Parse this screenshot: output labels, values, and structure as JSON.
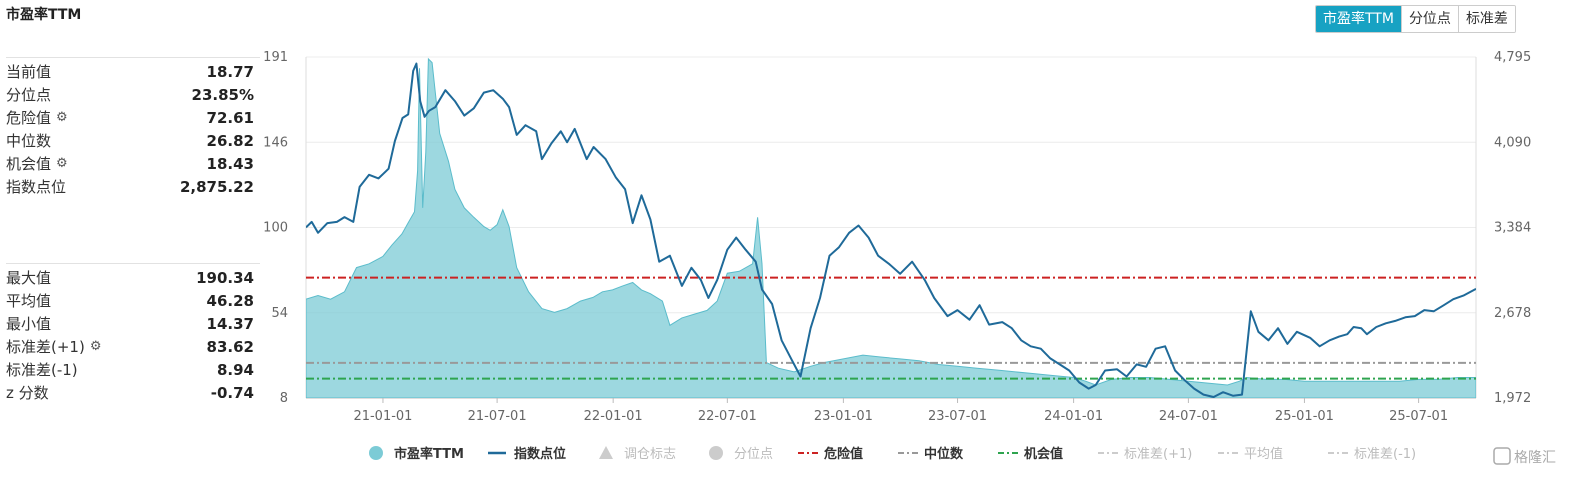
{
  "title": "市盈率TTM",
  "tabs": [
    {
      "label": "市盈率TTM",
      "active": true
    },
    {
      "label": "分位点",
      "active": false
    },
    {
      "label": "标准差",
      "active": false
    }
  ],
  "stats_top": [
    {
      "label": "当前值",
      "value": "18.77",
      "gear": false
    },
    {
      "label": "分位点",
      "value": "23.85%",
      "gear": false
    },
    {
      "label": "危险值",
      "value": "72.61",
      "gear": true
    },
    {
      "label": "中位数",
      "value": "26.82",
      "gear": false
    },
    {
      "label": "机会值",
      "value": "18.43",
      "gear": true
    },
    {
      "label": "指数点位",
      "value": "2,875.22",
      "gear": false
    }
  ],
  "stats_bottom": [
    {
      "label": "最大值",
      "value": "190.34",
      "gear": false
    },
    {
      "label": "平均值",
      "value": "46.28",
      "gear": false
    },
    {
      "label": "最小值",
      "value": "14.37",
      "gear": false
    },
    {
      "label": "标准差(+1)",
      "value": "83.62",
      "gear": true
    },
    {
      "label": "标准差(-1)",
      "value": "8.94",
      "gear": false
    },
    {
      "label": "z 分数",
      "value": "-0.74",
      "gear": false
    }
  ],
  "watermark": "格隆汇",
  "chart_data": {
    "type": "line",
    "x_ticks": [
      "21-01-01",
      "21-07-01",
      "22-01-01",
      "22-07-01",
      "23-01-01",
      "23-07-01",
      "24-01-01",
      "24-07-01",
      "25-01-01",
      "25-07-01"
    ],
    "x_range": [
      "2020-09-01",
      "2025-09-30"
    ],
    "y_left": {
      "ticks": [
        "191",
        "146",
        "100",
        "54",
        "8"
      ],
      "min": 8,
      "max": 191
    },
    "y_right": {
      "ticks": [
        "4,795",
        "4,090",
        "3,384",
        "2,678",
        "1,972"
      ],
      "min": 1972,
      "max": 4795
    },
    "series": [
      {
        "name": "市盈率TTM",
        "type": "area",
        "axis": "left",
        "color": "#7ccbd6",
        "points": [
          [
            "2020-09-01",
            61
          ],
          [
            "2020-09-20",
            63
          ],
          [
            "2020-10-10",
            61
          ],
          [
            "2020-11-01",
            65
          ],
          [
            "2020-11-20",
            78
          ],
          [
            "2020-12-10",
            80
          ],
          [
            "2021-01-01",
            84
          ],
          [
            "2021-01-15",
            90
          ],
          [
            "2021-01-31",
            96
          ],
          [
            "2021-02-10",
            102
          ],
          [
            "2021-02-20",
            108
          ],
          [
            "2021-02-25",
            130
          ],
          [
            "2021-02-28",
            185
          ],
          [
            "2021-03-05",
            110
          ],
          [
            "2021-03-10",
            140
          ],
          [
            "2021-03-14",
            190
          ],
          [
            "2021-03-20",
            188
          ],
          [
            "2021-04-01",
            150
          ],
          [
            "2021-04-15",
            135
          ],
          [
            "2021-04-25",
            120
          ],
          [
            "2021-05-10",
            110
          ],
          [
            "2021-05-25",
            105
          ],
          [
            "2021-06-10",
            100
          ],
          [
            "2021-06-20",
            98
          ],
          [
            "2021-07-01",
            101
          ],
          [
            "2021-07-10",
            109
          ],
          [
            "2021-07-20",
            100
          ],
          [
            "2021-08-01",
            78
          ],
          [
            "2021-08-20",
            65
          ],
          [
            "2021-09-10",
            56
          ],
          [
            "2021-09-30",
            54
          ],
          [
            "2021-10-20",
            56
          ],
          [
            "2021-11-10",
            60
          ],
          [
            "2021-11-30",
            62
          ],
          [
            "2021-12-15",
            65
          ],
          [
            "2021-12-31",
            66
          ],
          [
            "2022-01-15",
            68
          ],
          [
            "2022-02-01",
            70
          ],
          [
            "2022-02-15",
            66
          ],
          [
            "2022-03-01",
            64
          ],
          [
            "2022-03-20",
            60
          ],
          [
            "2022-04-01",
            47
          ],
          [
            "2022-04-20",
            51
          ],
          [
            "2022-05-10",
            53
          ],
          [
            "2022-05-30",
            55
          ],
          [
            "2022-06-15",
            60
          ],
          [
            "2022-07-01",
            75
          ],
          [
            "2022-07-20",
            76
          ],
          [
            "2022-08-10",
            80
          ],
          [
            "2022-08-18",
            105
          ],
          [
            "2022-08-25",
            80
          ],
          [
            "2022-09-01",
            27
          ],
          [
            "2022-09-20",
            24
          ],
          [
            "2022-10-15",
            22
          ],
          [
            "2022-11-10",
            25
          ],
          [
            "2022-12-01",
            27
          ],
          [
            "2023-01-01",
            29
          ],
          [
            "2023-02-01",
            31
          ],
          [
            "2023-03-01",
            30
          ],
          [
            "2023-04-01",
            29
          ],
          [
            "2023-05-01",
            28
          ],
          [
            "2023-06-01",
            26
          ],
          [
            "2023-07-01",
            25
          ],
          [
            "2023-08-01",
            24
          ],
          [
            "2023-09-01",
            23
          ],
          [
            "2023-10-01",
            22
          ],
          [
            "2023-11-01",
            21
          ],
          [
            "2023-12-01",
            20
          ],
          [
            "2024-01-01",
            19
          ],
          [
            "2024-01-20",
            17
          ],
          [
            "2024-02-05",
            15
          ],
          [
            "2024-03-01",
            18
          ],
          [
            "2024-04-01",
            19
          ],
          [
            "2024-05-01",
            19
          ],
          [
            "2024-06-01",
            18
          ],
          [
            "2024-07-01",
            17
          ],
          [
            "2024-08-01",
            16
          ],
          [
            "2024-09-01",
            15
          ],
          [
            "2024-09-20",
            17
          ],
          [
            "2024-10-01",
            19
          ],
          [
            "2024-11-01",
            18
          ],
          [
            "2024-12-01",
            18
          ],
          [
            "2025-01-01",
            17
          ],
          [
            "2025-02-01",
            17
          ],
          [
            "2025-03-01",
            17
          ],
          [
            "2025-04-01",
            17
          ],
          [
            "2025-05-01",
            17
          ],
          [
            "2025-06-01",
            17
          ],
          [
            "2025-07-01",
            18
          ],
          [
            "2025-08-01",
            18
          ],
          [
            "2025-09-01",
            19
          ],
          [
            "2025-09-30",
            19
          ]
        ]
      },
      {
        "name": "指数点位",
        "type": "line",
        "axis": "right",
        "color": "#1f6a99",
        "points": [
          [
            "2020-09-01",
            3384
          ],
          [
            "2020-09-10",
            3430
          ],
          [
            "2020-09-20",
            3340
          ],
          [
            "2020-10-05",
            3420
          ],
          [
            "2020-10-20",
            3430
          ],
          [
            "2020-11-01",
            3470
          ],
          [
            "2020-11-15",
            3430
          ],
          [
            "2020-11-25",
            3720
          ],
          [
            "2020-12-10",
            3820
          ],
          [
            "2020-12-25",
            3790
          ],
          [
            "2021-01-10",
            3870
          ],
          [
            "2021-01-20",
            4100
          ],
          [
            "2021-02-01",
            4290
          ],
          [
            "2021-02-10",
            4320
          ],
          [
            "2021-02-18",
            4680
          ],
          [
            "2021-02-23",
            4740
          ],
          [
            "2021-03-01",
            4430
          ],
          [
            "2021-03-08",
            4300
          ],
          [
            "2021-03-15",
            4350
          ],
          [
            "2021-03-25",
            4380
          ],
          [
            "2021-04-10",
            4520
          ],
          [
            "2021-04-25",
            4430
          ],
          [
            "2021-05-10",
            4310
          ],
          [
            "2021-05-25",
            4370
          ],
          [
            "2021-06-10",
            4500
          ],
          [
            "2021-06-25",
            4520
          ],
          [
            "2021-07-10",
            4450
          ],
          [
            "2021-07-20",
            4380
          ],
          [
            "2021-08-01",
            4150
          ],
          [
            "2021-08-15",
            4230
          ],
          [
            "2021-09-01",
            4180
          ],
          [
            "2021-09-10",
            3950
          ],
          [
            "2021-09-25",
            4080
          ],
          [
            "2021-10-10",
            4180
          ],
          [
            "2021-10-20",
            4090
          ],
          [
            "2021-11-01",
            4200
          ],
          [
            "2021-11-20",
            3950
          ],
          [
            "2021-12-01",
            4050
          ],
          [
            "2021-12-20",
            3950
          ],
          [
            "2022-01-05",
            3800
          ],
          [
            "2022-01-20",
            3700
          ],
          [
            "2022-02-01",
            3420
          ],
          [
            "2022-02-15",
            3650
          ],
          [
            "2022-03-01",
            3450
          ],
          [
            "2022-03-15",
            3100
          ],
          [
            "2022-04-01",
            3150
          ],
          [
            "2022-04-20",
            2900
          ],
          [
            "2022-05-05",
            3050
          ],
          [
            "2022-05-20",
            2950
          ],
          [
            "2022-06-01",
            2800
          ],
          [
            "2022-06-15",
            2950
          ],
          [
            "2022-07-01",
            3200
          ],
          [
            "2022-07-15",
            3300
          ],
          [
            "2022-07-30",
            3200
          ],
          [
            "2022-08-15",
            3100
          ],
          [
            "2022-08-25",
            2870
          ],
          [
            "2022-09-10",
            2750
          ],
          [
            "2022-09-25",
            2450
          ],
          [
            "2022-10-10",
            2300
          ],
          [
            "2022-10-25",
            2150
          ],
          [
            "2022-11-10",
            2550
          ],
          [
            "2022-11-25",
            2800
          ],
          [
            "2022-12-10",
            3150
          ],
          [
            "2022-12-25",
            3220
          ],
          [
            "2023-01-10",
            3340
          ],
          [
            "2023-01-25",
            3400
          ],
          [
            "2023-02-10",
            3300
          ],
          [
            "2023-02-25",
            3150
          ],
          [
            "2023-03-15",
            3080
          ],
          [
            "2023-04-01",
            3000
          ],
          [
            "2023-04-20",
            3100
          ],
          [
            "2023-05-10",
            2950
          ],
          [
            "2023-05-25",
            2800
          ],
          [
            "2023-06-15",
            2650
          ],
          [
            "2023-07-01",
            2700
          ],
          [
            "2023-07-20",
            2620
          ],
          [
            "2023-08-05",
            2740
          ],
          [
            "2023-08-20",
            2580
          ],
          [
            "2023-09-10",
            2600
          ],
          [
            "2023-09-25",
            2550
          ],
          [
            "2023-10-10",
            2450
          ],
          [
            "2023-10-25",
            2400
          ],
          [
            "2023-11-10",
            2380
          ],
          [
            "2023-11-25",
            2300
          ],
          [
            "2023-12-10",
            2250
          ],
          [
            "2023-12-25",
            2200
          ],
          [
            "2024-01-10",
            2100
          ],
          [
            "2024-01-25",
            2050
          ],
          [
            "2024-02-05",
            2080
          ],
          [
            "2024-02-20",
            2200
          ],
          [
            "2024-03-10",
            2210
          ],
          [
            "2024-03-25",
            2150
          ],
          [
            "2024-04-10",
            2250
          ],
          [
            "2024-04-25",
            2230
          ],
          [
            "2024-05-10",
            2380
          ],
          [
            "2024-05-25",
            2400
          ],
          [
            "2024-06-10",
            2200
          ],
          [
            "2024-06-25",
            2120
          ],
          [
            "2024-07-10",
            2050
          ],
          [
            "2024-07-25",
            2000
          ],
          [
            "2024-08-10",
            1980
          ],
          [
            "2024-08-25",
            2020
          ],
          [
            "2024-09-10",
            1990
          ],
          [
            "2024-09-24",
            2000
          ],
          [
            "2024-10-08",
            2690
          ],
          [
            "2024-10-20",
            2520
          ],
          [
            "2024-11-05",
            2450
          ],
          [
            "2024-11-20",
            2550
          ],
          [
            "2024-12-05",
            2420
          ],
          [
            "2024-12-20",
            2520
          ],
          [
            "2025-01-10",
            2470
          ],
          [
            "2025-01-25",
            2400
          ],
          [
            "2025-02-10",
            2450
          ],
          [
            "2025-02-25",
            2480
          ],
          [
            "2025-03-10",
            2500
          ],
          [
            "2025-03-20",
            2560
          ],
          [
            "2025-04-01",
            2550
          ],
          [
            "2025-04-10",
            2500
          ],
          [
            "2025-04-25",
            2560
          ],
          [
            "2025-05-10",
            2590
          ],
          [
            "2025-05-25",
            2610
          ],
          [
            "2025-06-10",
            2640
          ],
          [
            "2025-06-25",
            2650
          ],
          [
            "2025-07-10",
            2700
          ],
          [
            "2025-07-25",
            2690
          ],
          [
            "2025-08-10",
            2740
          ],
          [
            "2025-08-25",
            2790
          ],
          [
            "2025-09-10",
            2820
          ],
          [
            "2025-09-30",
            2875
          ]
        ]
      }
    ],
    "reference_lines": [
      {
        "name": "危险值",
        "value": 72.61,
        "color": "#cc2222",
        "style": "dashdot"
      },
      {
        "name": "中位数",
        "value": 26.82,
        "color": "#999999",
        "style": "dashdot"
      },
      {
        "name": "机会值",
        "value": 18.43,
        "color": "#2ea44f",
        "style": "dashdot"
      }
    ],
    "legend": [
      {
        "name": "市盈率TTM",
        "icon": "circle",
        "color": "#7ccbd6",
        "active": true
      },
      {
        "name": "指数点位",
        "icon": "line",
        "color": "#1f6a99",
        "active": true
      },
      {
        "name": "调仓标志",
        "icon": "triangle",
        "color": "#cccccc",
        "active": false
      },
      {
        "name": "分位点",
        "icon": "circle",
        "color": "#cccccc",
        "active": false
      },
      {
        "name": "危险值",
        "icon": "dashdot",
        "color": "#cc2222",
        "active": true
      },
      {
        "name": "中位数",
        "icon": "dashdot",
        "color": "#999999",
        "active": true
      },
      {
        "name": "机会值",
        "icon": "dashdot",
        "color": "#2ea44f",
        "active": true
      },
      {
        "name": "标准差(+1)",
        "icon": "dashdot",
        "color": "#cccccc",
        "active": false
      },
      {
        "name": "平均值",
        "icon": "dashdot",
        "color": "#cccccc",
        "active": false
      },
      {
        "name": "标准差(-1)",
        "icon": "dashdot",
        "color": "#cccccc",
        "active": false
      }
    ],
    "legend_position": "bottom"
  }
}
